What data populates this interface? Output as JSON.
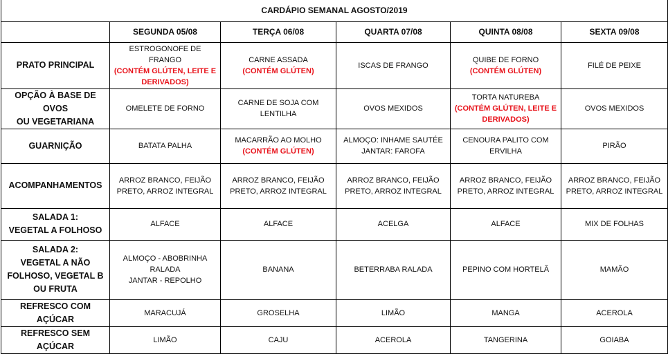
{
  "title": "CARDÁPIO SEMANAL AGOSTO/2019",
  "days": [
    "SEGUNDA 05/08",
    "TERÇA 06/08",
    "QUARTA 07/08",
    "QUINTA 08/08",
    "SEXTA 09/08"
  ],
  "allergen_color": "#e8141c",
  "rows": [
    {
      "label": [
        "PRATO PRINCIPAL"
      ],
      "cells": [
        [
          {
            "text": "ESTROGONOFE DE FRANGO"
          },
          {
            "text": "(CONTÉM GLÚTEN, LEITE E",
            "red": true
          },
          {
            "text": "DERIVADOS)",
            "red": true
          }
        ],
        [
          {
            "text": "CARNE ASSADA"
          },
          {
            "text": "(CONTÉM GLÚTEN)",
            "red": true
          }
        ],
        [
          {
            "text": "ISCAS DE FRANGO"
          }
        ],
        [
          {
            "text": "QUIBE DE FORNO"
          },
          {
            "text": "(CONTÉM GLÚTEN)",
            "red": true
          }
        ],
        [
          {
            "text": "FILÉ DE PEIXE"
          }
        ]
      ]
    },
    {
      "label": [
        "OPÇÃO À BASE DE OVOS",
        "OU VEGETARIANA"
      ],
      "cells": [
        [
          {
            "text": "OMELETE DE FORNO"
          }
        ],
        [
          {
            "text": "CARNE DE SOJA COM"
          },
          {
            "text": "LENTILHA"
          }
        ],
        [
          {
            "text": "OVOS MEXIDOS"
          }
        ],
        [
          {
            "text": "TORTA NATUREBA"
          },
          {
            "text": "(CONTÉM GLÚTEN, LEITE E",
            "red": true
          },
          {
            "text": "DERIVADOS)",
            "red": true
          }
        ],
        [
          {
            "text": "OVOS MEXIDOS"
          }
        ]
      ]
    },
    {
      "label": [
        "GUARNIÇÃO"
      ],
      "cells": [
        [
          {
            "text": "BATATA PALHA"
          }
        ],
        [
          {
            "text": "MACARRÃO AO MOLHO"
          },
          {
            "text": "(CONTÉM GLÚTEN)",
            "red": true
          }
        ],
        [
          {
            "text": "ALMOÇO: INHAME SAUTÉE"
          },
          {
            "text": "JANTAR: FAROFA"
          }
        ],
        [
          {
            "text": "CENOURA PALITO COM"
          },
          {
            "text": "ERVILHA"
          }
        ],
        [
          {
            "text": "PIRÃO"
          }
        ]
      ]
    },
    {
      "label": [
        "ACOMPANHAMENTOS"
      ],
      "cells": [
        [
          {
            "text": "ARROZ BRANCO, FEIJÃO"
          },
          {
            "text": "PRETO, ARROZ INTEGRAL"
          }
        ],
        [
          {
            "text": "ARROZ BRANCO, FEIJÃO"
          },
          {
            "text": "PRETO, ARROZ INTEGRAL"
          }
        ],
        [
          {
            "text": "ARROZ BRANCO, FEIJÃO"
          },
          {
            "text": "PRETO, ARROZ INTEGRAL"
          }
        ],
        [
          {
            "text": "ARROZ BRANCO, FEIJÃO"
          },
          {
            "text": "PRETO, ARROZ INTEGRAL"
          }
        ],
        [
          {
            "text": "ARROZ BRANCO, FEIJÃO"
          },
          {
            "text": "PRETO, ARROZ INTEGRAL"
          }
        ]
      ]
    },
    {
      "label": [
        "SALADA 1:",
        "VEGETAL A FOLHOSO"
      ],
      "cells": [
        [
          {
            "text": "ALFACE"
          }
        ],
        [
          {
            "text": "ALFACE"
          }
        ],
        [
          {
            "text": "ACELGA"
          }
        ],
        [
          {
            "text": "ALFACE"
          }
        ],
        [
          {
            "text": "MIX DE FOLHAS"
          }
        ]
      ]
    },
    {
      "label": [
        "SALADA 2:",
        "VEGETAL A NÃO",
        "FOLHOSO, VEGETAL B",
        "OU FRUTA"
      ],
      "cells": [
        [
          {
            "text": "ALMOÇO - ABOBRINHA"
          },
          {
            "text": "RALADA"
          },
          {
            "text": "JANTAR - REPOLHO"
          }
        ],
        [
          {
            "text": "BANANA"
          }
        ],
        [
          {
            "text": "BETERRABA RALADA"
          }
        ],
        [
          {
            "text": "PEPINO COM HORTELÃ"
          }
        ],
        [
          {
            "text": "MAMÃO"
          }
        ]
      ]
    },
    {
      "label": [
        "REFRESCO COM AÇÚCAR"
      ],
      "cells": [
        [
          {
            "text": "MARACUJÁ"
          }
        ],
        [
          {
            "text": "GROSELHA"
          }
        ],
        [
          {
            "text": "LIMÃO"
          }
        ],
        [
          {
            "text": "MANGA"
          }
        ],
        [
          {
            "text": "ACEROLA"
          }
        ]
      ]
    },
    {
      "label": [
        "REFRESCO SEM AÇÚCAR"
      ],
      "cells": [
        [
          {
            "text": "LIMÃO"
          }
        ],
        [
          {
            "text": "CAJU"
          }
        ],
        [
          {
            "text": "ACEROLA"
          }
        ],
        [
          {
            "text": "TANGERINA"
          }
        ],
        [
          {
            "text": "GOIABA"
          }
        ]
      ]
    }
  ]
}
